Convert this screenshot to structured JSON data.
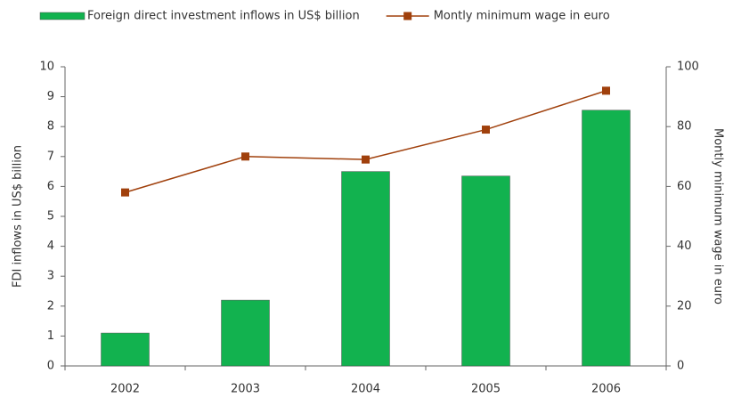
{
  "chart_data": {
    "type": "bar_line",
    "categories": [
      "2002",
      "2003",
      "2004",
      "2005",
      "2006"
    ],
    "series": [
      {
        "name": "Foreign direct investment inflows in US$ billion",
        "type": "bar",
        "color": "#12b24f",
        "values": [
          1.1,
          2.2,
          6.5,
          6.35,
          8.55
        ]
      },
      {
        "name": "Montly minimum wage in euro",
        "type": "line",
        "axis": "y2",
        "color": "#a0400c",
        "values": [
          58,
          70,
          69,
          79,
          92
        ]
      }
    ],
    "y_label": "FDI inflows in US$ billion",
    "y2_label": "Montly minimum wage in euro",
    "ylim": [
      0,
      10
    ],
    "yticks": [
      0,
      1,
      2,
      3,
      4,
      5,
      6,
      7,
      8,
      9,
      10
    ],
    "y2lim": [
      0,
      100
    ],
    "y2ticks": [
      0,
      20,
      40,
      60,
      80,
      100
    ],
    "legend": "top"
  }
}
